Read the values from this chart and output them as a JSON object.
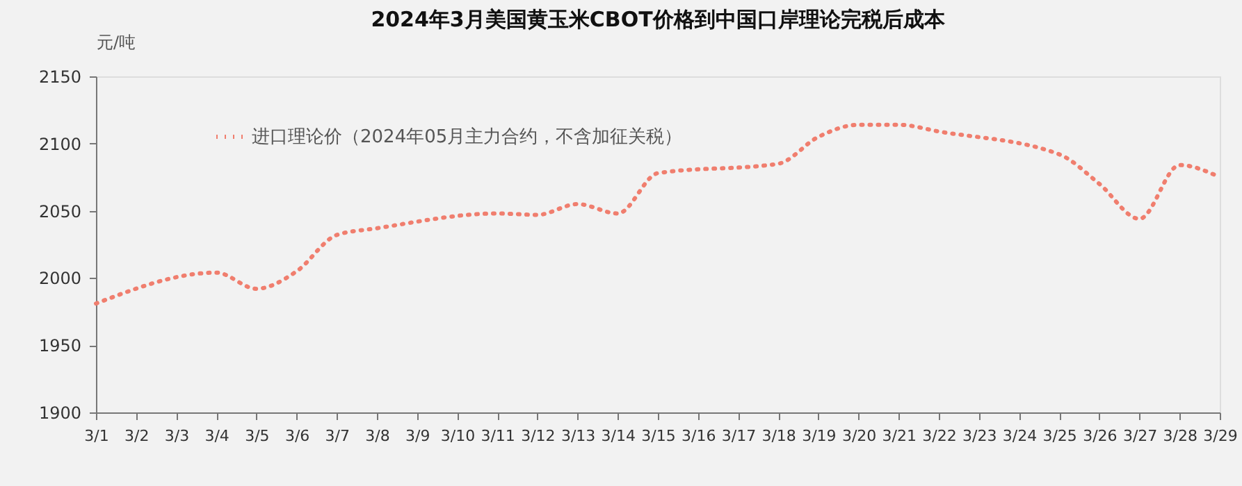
{
  "chart_data": {
    "type": "line",
    "title": "2024年3月美国黄玉米CBOT价格到中国口岸理论完税后成本",
    "ylabel": "元/吨",
    "x": [
      "2024-03-01",
      "2024-03-04",
      "2024-03-05",
      "2024-03-06",
      "2024-03-07",
      "2024-03-08",
      "2024-03-11",
      "2024-03-12",
      "2024-03-13",
      "2024-03-14",
      "2024-03-15",
      "2024-03-18",
      "2024-03-19",
      "2024-03-20",
      "2024-03-21",
      "2024-03-22",
      "2024-03-25",
      "2024-03-26",
      "2024-03-27",
      "2024-03-28",
      "2024-03-29"
    ],
    "series": [
      {
        "name": "进口理论价（2024年05月主力合约，不含加征关税）",
        "color": "#f07e6e",
        "values": [
          1981,
          2004,
          1992,
          2005,
          2032,
          2037,
          2048,
          2047,
          2055,
          2048,
          2078,
          2085,
          2105,
          2114,
          2114,
          2109,
          2092,
          2070,
          2044,
          2084,
          2075
        ]
      }
    ],
    "xlim": [
      "2024-03-01",
      "2024-03-29"
    ],
    "xticks": [
      {
        "value": "2024-03-01",
        "label": "3/1"
      },
      {
        "value": "2024-03-02",
        "label": "3/2"
      },
      {
        "value": "2024-03-03",
        "label": "3/3"
      },
      {
        "value": "2024-03-04",
        "label": "3/4"
      },
      {
        "value": "2024-03-05",
        "label": "3/5"
      },
      {
        "value": "2024-03-06",
        "label": "3/6"
      },
      {
        "value": "2024-03-07",
        "label": "3/7"
      },
      {
        "value": "2024-03-08",
        "label": "3/8"
      },
      {
        "value": "2024-03-09",
        "label": "3/9"
      },
      {
        "value": "2024-03-10",
        "label": "3/10"
      },
      {
        "value": "2024-03-11",
        "label": "3/11"
      },
      {
        "value": "2024-03-12",
        "label": "3/12"
      },
      {
        "value": "2024-03-13",
        "label": "3/13"
      },
      {
        "value": "2024-03-14",
        "label": "3/14"
      },
      {
        "value": "2024-03-15",
        "label": "3/15"
      },
      {
        "value": "2024-03-16",
        "label": "3/16"
      },
      {
        "value": "2024-03-17",
        "label": "3/17"
      },
      {
        "value": "2024-03-18",
        "label": "3/18"
      },
      {
        "value": "2024-03-19",
        "label": "3/19"
      },
      {
        "value": "2024-03-20",
        "label": "3/20"
      },
      {
        "value": "2024-03-21",
        "label": "3/21"
      },
      {
        "value": "2024-03-22",
        "label": "3/22"
      },
      {
        "value": "2024-03-23",
        "label": "3/23"
      },
      {
        "value": "2024-03-24",
        "label": "3/24"
      },
      {
        "value": "2024-03-25",
        "label": "3/25"
      },
      {
        "value": "2024-03-26",
        "label": "3/26"
      },
      {
        "value": "2024-03-27",
        "label": "3/27"
      },
      {
        "value": "2024-03-28",
        "label": "3/28"
      },
      {
        "value": "2024-03-29",
        "label": "3/29"
      }
    ],
    "ylim": [
      1900,
      2150
    ],
    "yticks": [
      1900,
      1950,
      2000,
      2050,
      2100,
      2150
    ],
    "grid": false,
    "legend": "top left",
    "line_style": "dotted",
    "marker": "none"
  }
}
